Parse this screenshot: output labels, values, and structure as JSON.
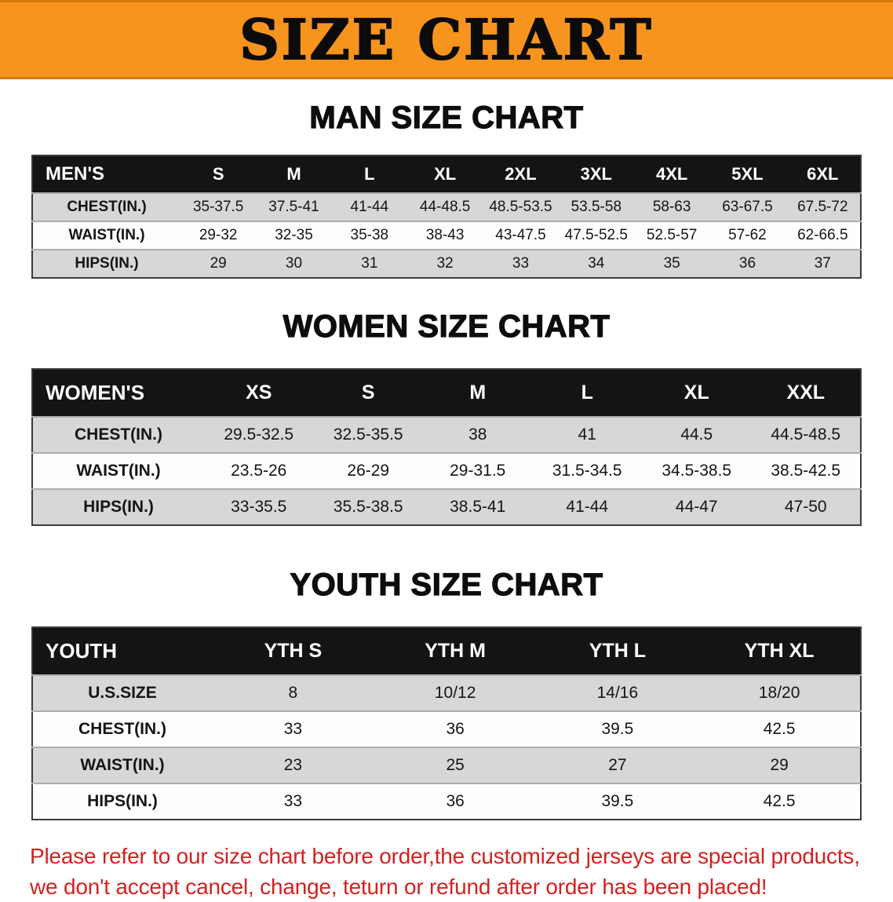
{
  "banner": {
    "title": "SIZE CHART",
    "bg_color": "#F7941E"
  },
  "sections": [
    {
      "heading": "MAN SIZE CHART",
      "table": {
        "header_label": "MEN'S",
        "columns": [
          "S",
          "M",
          "L",
          "XL",
          "2XL",
          "3XL",
          "4XL",
          "5XL",
          "6XL"
        ],
        "rows": [
          {
            "label": "CHEST(IN.)",
            "values": [
              "35-37.5",
              "37.5-41",
              "41-44",
              "44-48.5",
              "48.5-53.5",
              "53.5-58",
              "58-63",
              "63-67.5",
              "67.5-72"
            ]
          },
          {
            "label": "WAIST(IN.)",
            "values": [
              "29-32",
              "32-35",
              "35-38",
              "38-43",
              "43-47.5",
              "47.5-52.5",
              "52.5-57",
              "57-62",
              "62-66.5"
            ]
          },
          {
            "label": "HIPS(IN.)",
            "values": [
              "29",
              "30",
              "31",
              "32",
              "33",
              "34",
              "35",
              "36",
              "37"
            ]
          }
        ]
      }
    },
    {
      "heading": "WOMEN SIZE CHART",
      "table": {
        "header_label": "WOMEN'S",
        "columns": [
          "XS",
          "S",
          "M",
          "L",
          "XL",
          "XXL"
        ],
        "rows": [
          {
            "label": "CHEST(IN.)",
            "values": [
              "29.5-32.5",
              "32.5-35.5",
              "38",
              "41",
              "44.5",
              "44.5-48.5"
            ]
          },
          {
            "label": "WAIST(IN.)",
            "values": [
              "23.5-26",
              "26-29",
              "29-31.5",
              "31.5-34.5",
              "34.5-38.5",
              "38.5-42.5"
            ]
          },
          {
            "label": "HIPS(IN.)",
            "values": [
              "33-35.5",
              "35.5-38.5",
              "38.5-41",
              "41-44",
              "44-47",
              "47-50"
            ]
          }
        ]
      }
    },
    {
      "heading": "YOUTH SIZE CHART",
      "table": {
        "header_label": "YOUTH",
        "columns": [
          "YTH S",
          "YTH M",
          "YTH L",
          "YTH XL"
        ],
        "rows": [
          {
            "label": "U.S.SIZE",
            "values": [
              "8",
              "10/12",
              "14/16",
              "18/20"
            ]
          },
          {
            "label": "CHEST(IN.)",
            "values": [
              "33",
              "36",
              "39.5",
              "42.5"
            ]
          },
          {
            "label": "WAIST(IN.)",
            "values": [
              "23",
              "25",
              "27",
              "29"
            ]
          },
          {
            "label": "HIPS(IN.)",
            "values": [
              "33",
              "36",
              "39.5",
              "42.5"
            ]
          }
        ]
      }
    }
  ],
  "footer": {
    "line1": "Please refer to our size chart before order,the customized jerseys are special products,",
    "line2": "we don't accept cancel, change, teturn or refund after order has been placed!",
    "text_color": "#D32121"
  }
}
